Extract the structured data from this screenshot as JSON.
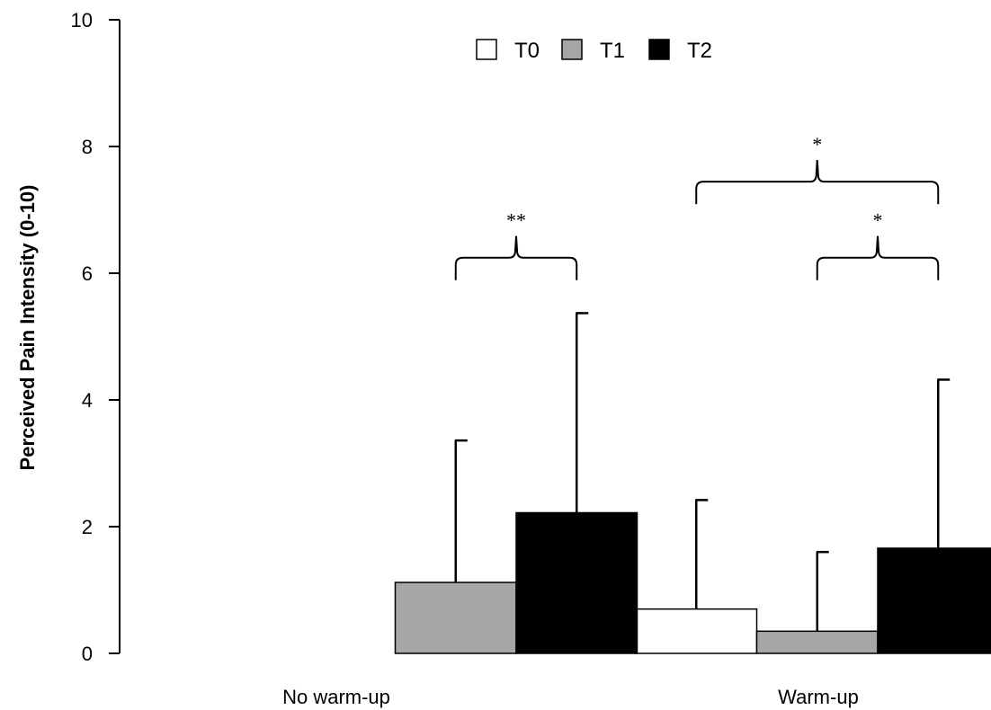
{
  "chart_data": {
    "type": "bar",
    "ylabel": "Perceived Pain Intensity (0-10)",
    "ylim": [
      0,
      10
    ],
    "yticks": [
      "0",
      "2",
      "4",
      "6",
      "8",
      "10"
    ],
    "categories": [
      "No warm-up",
      "Warm-up"
    ],
    "legend": {
      "placement": "top-center"
    },
    "series": [
      {
        "name": "T0",
        "color": "#ffffff",
        "values": [
          null,
          0.7
        ],
        "error_upper": [
          null,
          2.42
        ]
      },
      {
        "name": "T1",
        "color": "#a6a6a6",
        "values": [
          1.12,
          0.35
        ],
        "error_upper": [
          3.36,
          1.6
        ]
      },
      {
        "name": "T2",
        "color": "#000000",
        "values": [
          2.22,
          1.66
        ],
        "error_upper": [
          5.37,
          4.32
        ]
      }
    ],
    "annotations": [
      {
        "label": "**",
        "category": "No warm-up",
        "from": "T1",
        "to": "T2",
        "level": 6.6
      },
      {
        "label": "*",
        "category": "Warm-up",
        "from": "T0",
        "to": "T2",
        "level": 7.8
      },
      {
        "label": "*",
        "category": "Warm-up",
        "from": "T1",
        "to": "T2",
        "level": 6.6
      }
    ]
  }
}
